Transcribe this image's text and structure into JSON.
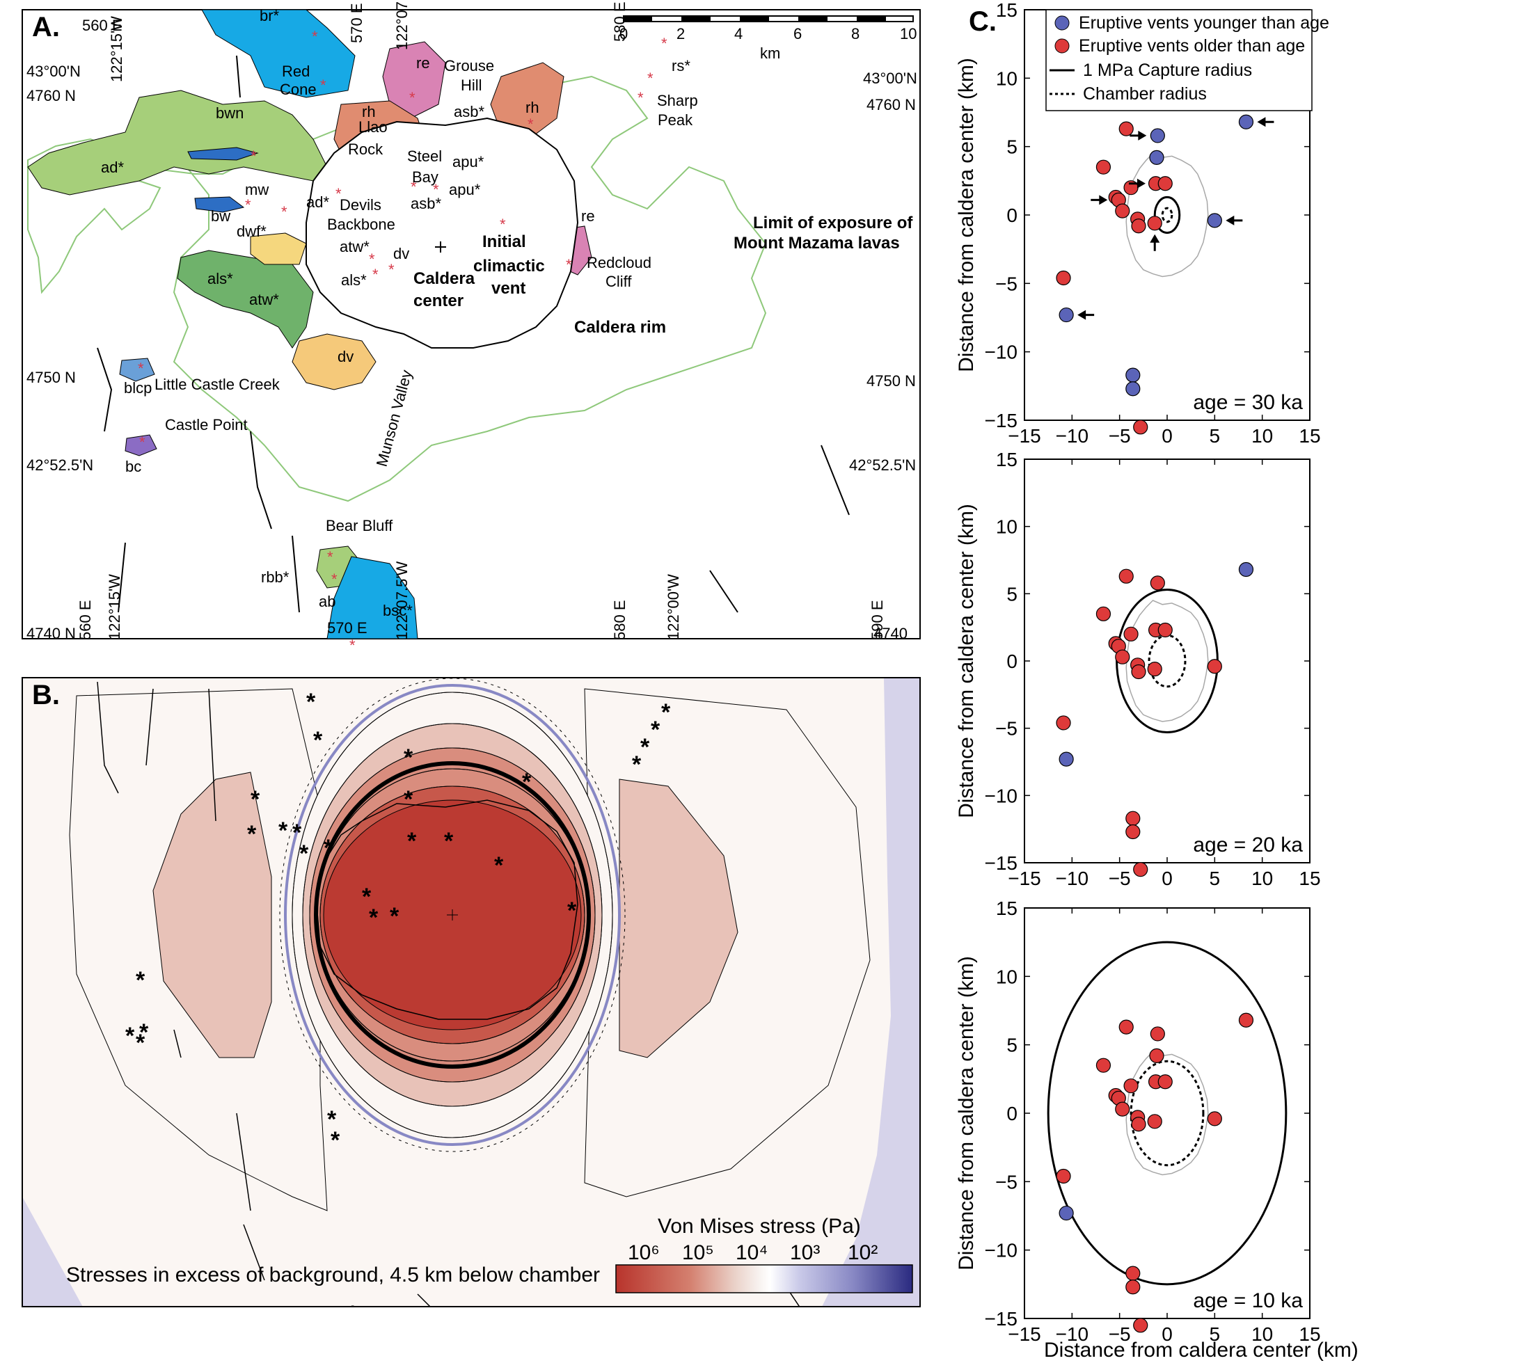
{
  "panel_a": {
    "letter": "A.",
    "grid_labels": [
      "560 E",
      "122°15'W",
      "570 E",
      "122°07.5'W",
      "580 E",
      "43°00'N",
      "4760 N",
      "43°00'N",
      "4760 N",
      "4750 N",
      "4750 N",
      "42°52.5'N",
      "42°52.5'N",
      "560 E",
      "122°15'W",
      "570 E",
      "122°07.5'W",
      "580 E",
      "122°00'W",
      "590 E",
      "4740 N",
      "4740"
    ],
    "scale_bar": {
      "ticks": [
        "0",
        "2",
        "4",
        "6",
        "8",
        "10"
      ],
      "unit": "km"
    },
    "unit_labels": [
      {
        "text": "br*",
        "color": "#17a9e5"
      },
      {
        "text": "Red",
        "color": "#17a9e5"
      },
      {
        "text": "Cone",
        "color": "#17a9e5"
      },
      {
        "text": "re",
        "color": "#d983b4"
      },
      {
        "text": "Grouse",
        "color": "#d983b4"
      },
      {
        "text": "Hill",
        "color": "#d983b4"
      },
      {
        "text": "rh",
        "color": "#e08c70"
      },
      {
        "text": "Llao",
        "color": "#e08c70"
      },
      {
        "text": "Rock",
        "color": "#e08c70"
      },
      {
        "text": "rh",
        "color": "#e08c70"
      },
      {
        "text": "rs*",
        "color": "#e08c70"
      },
      {
        "text": "Sharp",
        "color": "#e08c70"
      },
      {
        "text": "Peak",
        "color": "#e08c70"
      },
      {
        "text": "asb*",
        "color": "#a6cf7a"
      },
      {
        "text": "Steel",
        "color": "#a6cf7a"
      },
      {
        "text": "Bay",
        "color": "#a6cf7a"
      },
      {
        "text": "apu*",
        "color": "#a6cf7a"
      },
      {
        "text": "apu*",
        "color": "#a6cf7a"
      },
      {
        "text": "asb*",
        "color": "#a6cf7a"
      },
      {
        "text": "bwn",
        "color": "#2d6ec4"
      },
      {
        "text": "ad*",
        "color": "#a6cf7a"
      },
      {
        "text": "mw",
        "color": "#e6d64a"
      },
      {
        "text": "bw",
        "color": "#2d6ec4"
      },
      {
        "text": "ad*",
        "color": "#a6cf7a"
      },
      {
        "text": "Devils",
        "color": "#a6cf7a"
      },
      {
        "text": "Backbone",
        "color": "#a6cf7a"
      },
      {
        "text": "dwf*",
        "color": "#f5d77e"
      },
      {
        "text": "atw*",
        "color": "#6fb26b"
      },
      {
        "text": "dv",
        "color": "#f5c97a"
      },
      {
        "text": "als*",
        "color": "#6fb26b"
      },
      {
        "text": "als*",
        "color": "#6fb26b"
      },
      {
        "text": "atw*",
        "color": "#6fb26b"
      },
      {
        "text": "dv",
        "color": "#f5c97a"
      },
      {
        "text": "re",
        "color": "#d983b4"
      },
      {
        "text": "Redcloud",
        "color": "#d983b4"
      },
      {
        "text": "Cliff",
        "color": "#d983b4"
      },
      {
        "text": "blcp",
        "color": "#6aa0d8"
      },
      {
        "text": "Little Castle Creek",
        "color": "#6aa0d8"
      },
      {
        "text": "Castle Point",
        "color": "#8b6cc4"
      },
      {
        "text": "bc",
        "color": "#8b6cc4"
      },
      {
        "text": "Bear Bluff",
        "color": "#a6cf7a"
      },
      {
        "text": "rbb*",
        "color": "#a6cf7a"
      },
      {
        "text": "ab",
        "color": "#a6cf7a"
      },
      {
        "text": "bsc*",
        "color": "#17a9e5"
      },
      {
        "text": "Munson Valley",
        "color": "#000000"
      }
    ],
    "bold_labels": [
      "Initial",
      "climactic",
      "vent",
      "Caldera",
      "center",
      "Caldera rim",
      "Limit of exposure of",
      "Mount Mazama lavas"
    ]
  },
  "panel_b": {
    "letter": "B.",
    "caption": "Stresses in excess of background, 4.5 km below chamber",
    "colorbar_title": "Von Mises stress (Pa)",
    "colorbar_ticks": [
      "10⁶",
      "10⁵",
      "10⁴",
      "10³",
      "10²"
    ],
    "colorbar_stops": [
      "#b8342c",
      "#d4806f",
      "#ead1c8",
      "#f7f1ee",
      "#ffffff",
      "#c9c9e8",
      "#8888c4",
      "#2a2a80"
    ],
    "contour_colors": [
      "#fbf6f3",
      "#e8c2b8",
      "#d98d7e",
      "#c7584b",
      "#bb3a32"
    ],
    "low_stress_color": "#d6d3ea"
  },
  "panel_c": {
    "letter": "C.",
    "legend": {
      "younger": "Eruptive vents younger than age",
      "older": "Eruptive vents older than age",
      "capture": "1 MPa Capture radius",
      "chamber": "Chamber radius"
    },
    "colors": {
      "younger": "#5b64b8",
      "older": "#de3a3a",
      "rim": "#a8a8a8"
    },
    "ylabel": "Distance from caldera center (km)",
    "xlabel": "Distance from caldera center (km)",
    "ticks": [
      "−15",
      "−10",
      "−5",
      "0",
      "5",
      "10",
      "15"
    ]
  },
  "chart_data": [
    {
      "type": "scatter",
      "annotation": "age = 30 ka",
      "xlim": [
        -15,
        15
      ],
      "ylim": [
        -15,
        15
      ],
      "capture_radius_km": 1.3,
      "chamber_radius_km": 0.5,
      "series": [
        {
          "name": "Eruptive vents younger than age",
          "x": [
            -1,
            -1.1,
            8.3,
            5.0,
            -10.6,
            -3.6,
            -3.6
          ],
          "y": [
            5.8,
            4.2,
            6.8,
            -0.4,
            -7.3,
            -11.7,
            -12.7
          ]
        },
        {
          "name": "Eruptive vents older than age",
          "x": [
            -4.3,
            -6.7,
            -5.4,
            -5.1,
            -3.8,
            -4.7,
            -1.2,
            -0.2,
            -3.1,
            -3.0,
            -1.3,
            -10.9,
            -2.8
          ],
          "y": [
            6.3,
            3.5,
            1.3,
            1.1,
            2.0,
            0.3,
            2.3,
            2.3,
            -0.3,
            -0.8,
            -0.6,
            -4.6,
            -15.5
          ]
        }
      ],
      "arrows_at": [
        [
          -1,
          5.8
        ],
        [
          8.3,
          6.8
        ],
        [
          -1.1,
          2.3
        ],
        [
          -5.1,
          1.1
        ],
        [
          -1.3,
          -0.6
        ],
        [
          5.0,
          -0.4
        ],
        [
          -10.6,
          -7.3
        ]
      ]
    },
    {
      "type": "scatter",
      "annotation": "age = 20 ka",
      "xlim": [
        -15,
        15
      ],
      "ylim": [
        -15,
        15
      ],
      "capture_radius_km": 5.3,
      "chamber_radius_km": 1.9,
      "series": [
        {
          "name": "Eruptive vents younger than age",
          "x": [
            8.3,
            -10.6
          ],
          "y": [
            6.8,
            -7.3
          ]
        },
        {
          "name": "Eruptive vents older than age",
          "x": [
            -4.3,
            -6.7,
            -5.4,
            -5.1,
            -3.8,
            -4.7,
            -1.0,
            -1.2,
            -0.2,
            -3.1,
            -3.0,
            -1.3,
            5.0,
            -10.9,
            -3.6,
            -3.6,
            -2.8
          ],
          "y": [
            6.3,
            3.5,
            1.3,
            1.1,
            2.0,
            0.3,
            5.8,
            2.3,
            2.3,
            -0.3,
            -0.8,
            -0.6,
            -0.4,
            -4.6,
            -11.7,
            -12.7,
            -15.5
          ]
        }
      ]
    },
    {
      "type": "scatter",
      "annotation": "age = 10 ka",
      "xlim": [
        -15,
        15
      ],
      "ylim": [
        -15,
        15
      ],
      "capture_radius_km": 12.5,
      "chamber_radius_km": 3.8,
      "series": [
        {
          "name": "Eruptive vents younger than age",
          "x": [
            -10.6
          ],
          "y": [
            -7.3
          ]
        },
        {
          "name": "Eruptive vents older than age",
          "x": [
            -4.3,
            -6.7,
            -5.4,
            -5.1,
            -3.8,
            -4.7,
            -1.0,
            -1.1,
            -1.2,
            -0.2,
            -3.1,
            -3.0,
            -1.3,
            5.0,
            8.3,
            -10.9,
            -3.6,
            -3.6,
            -2.8
          ],
          "y": [
            6.3,
            3.5,
            1.3,
            1.1,
            2.0,
            0.3,
            5.8,
            4.2,
            2.3,
            2.3,
            -0.3,
            -0.8,
            -0.6,
            -0.4,
            6.8,
            -4.6,
            -11.7,
            -12.7,
            -15.5
          ]
        }
      ]
    }
  ]
}
